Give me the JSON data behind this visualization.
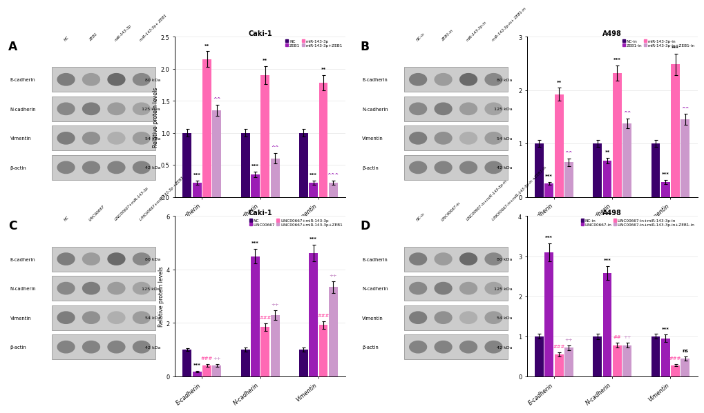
{
  "panels": [
    "A",
    "B",
    "C",
    "D"
  ],
  "panel_titles": [
    "Caki-1",
    "A498",
    "Caki-1",
    "A498"
  ],
  "panel_A": {
    "blot_labels": [
      "NC",
      "ZEB1",
      "miR-143-3p",
      "miR-143-3p+ ZEB1"
    ],
    "blot_rows": [
      "E-cadherin",
      "N-cadherin",
      "Vimentin",
      "β-actin"
    ],
    "blot_kda": [
      "80 kDa",
      "125 kDa",
      "54 kDa",
      "42 kDa"
    ],
    "legend": [
      "NC",
      "ZEB1",
      "miR-143-3p",
      "miR-143-3p+ZEB1"
    ],
    "legend_colors": [
      "#3B006B",
      "#9B1DB5",
      "#FF69B4",
      "#CC99CC"
    ],
    "categories": [
      "E-cadherin",
      "N-cadherin",
      "Vimentin"
    ],
    "values": [
      [
        1.0,
        0.22,
        2.15,
        1.35
      ],
      [
        1.0,
        0.35,
        1.9,
        0.6
      ],
      [
        1.0,
        0.22,
        1.78,
        0.22
      ]
    ],
    "errors": [
      [
        0.06,
        0.03,
        0.12,
        0.09
      ],
      [
        0.06,
        0.04,
        0.14,
        0.08
      ],
      [
        0.06,
        0.03,
        0.12,
        0.03
      ]
    ],
    "ylim": [
      0,
      2.5
    ],
    "yticks": [
      0.0,
      0.5,
      1.0,
      1.5,
      2.0,
      2.5
    ],
    "annotations": [
      {
        "group": 0,
        "bar": 1,
        "text": "***",
        "color": "black"
      },
      {
        "group": 0,
        "bar": 2,
        "text": "**",
        "color": "black"
      },
      {
        "group": 0,
        "bar": 3,
        "text": "^^",
        "color": "#9B1DB5"
      },
      {
        "group": 1,
        "bar": 1,
        "text": "***",
        "color": "black"
      },
      {
        "group": 1,
        "bar": 2,
        "text": "**",
        "color": "black"
      },
      {
        "group": 1,
        "bar": 3,
        "text": "^^",
        "color": "#9B1DB5"
      },
      {
        "group": 2,
        "bar": 1,
        "text": "***",
        "color": "black"
      },
      {
        "group": 2,
        "bar": 2,
        "text": "**",
        "color": "black"
      },
      {
        "group": 2,
        "bar": 3,
        "text": "^^^",
        "color": "#9B1DB5"
      }
    ]
  },
  "panel_B": {
    "blot_labels": [
      "NC-in",
      "ZEB1-in",
      "miR-143-3p-in",
      "miR-143-3p-in+ ZEB1-in"
    ],
    "blot_rows": [
      "E-cadherin",
      "N-cadherin",
      "Vimentin",
      "β-actin"
    ],
    "blot_kda": [
      "80 kDa",
      "125 kDa",
      "54 kDa",
      "42 kDa"
    ],
    "legend": [
      "NC-in",
      "ZEB1-in",
      "miR-143-3p-in",
      "miR-143-3p-in+ZEB1-in"
    ],
    "legend_colors": [
      "#3B006B",
      "#9B1DB5",
      "#FF69B4",
      "#CC99CC"
    ],
    "categories": [
      "E-cadherin",
      "N-cadherin",
      "Vimentin"
    ],
    "values": [
      [
        1.0,
        0.25,
        1.92,
        0.65
      ],
      [
        1.0,
        0.68,
        2.32,
        1.38
      ],
      [
        1.0,
        0.28,
        2.48,
        1.45
      ]
    ],
    "errors": [
      [
        0.06,
        0.03,
        0.12,
        0.07
      ],
      [
        0.06,
        0.05,
        0.14,
        0.09
      ],
      [
        0.06,
        0.04,
        0.2,
        0.1
      ]
    ],
    "ylim": [
      0,
      3.0
    ],
    "yticks": [
      0.0,
      1.0,
      2.0,
      3.0
    ],
    "annotations": [
      {
        "group": 0,
        "bar": 1,
        "text": "***",
        "color": "black"
      },
      {
        "group": 0,
        "bar": 2,
        "text": "**",
        "color": "black"
      },
      {
        "group": 0,
        "bar": 3,
        "text": "^^",
        "color": "#9B1DB5"
      },
      {
        "group": 1,
        "bar": 1,
        "text": "**",
        "color": "black"
      },
      {
        "group": 1,
        "bar": 2,
        "text": "***",
        "color": "black"
      },
      {
        "group": 1,
        "bar": 3,
        "text": "^^",
        "color": "#9B1DB5"
      },
      {
        "group": 2,
        "bar": 1,
        "text": "***",
        "color": "black"
      },
      {
        "group": 2,
        "bar": 2,
        "text": "***",
        "color": "black"
      },
      {
        "group": 2,
        "bar": 3,
        "text": "^^",
        "color": "#9B1DB5"
      }
    ]
  },
  "panel_C": {
    "blot_labels": [
      "NC",
      "LINC00667",
      "LINC00667+miR-143-3p",
      "LINC00667+miR-143-3p +ZEB1"
    ],
    "blot_rows": [
      "E-cadherin",
      "N-cadherin",
      "Vimentin",
      "β-actin"
    ],
    "blot_kda": [
      "80 kDa",
      "125 kDa",
      "54 kDa",
      "42 kDa"
    ],
    "legend": [
      "NC",
      "LINC00667",
      "LINC00667+miR-143-3p",
      "LINC00667+miR-143-3p+ZEB1"
    ],
    "legend_colors": [
      "#3B006B",
      "#9B1DB5",
      "#FF69B4",
      "#CC99CC"
    ],
    "categories": [
      "E-cadherin",
      "N-cadherin",
      "Vimentin"
    ],
    "values": [
      [
        1.0,
        0.18,
        0.42,
        0.42
      ],
      [
        1.0,
        4.5,
        1.85,
        2.3
      ],
      [
        1.0,
        4.62,
        1.92,
        3.35
      ]
    ],
    "errors": [
      [
        0.06,
        0.02,
        0.05,
        0.05
      ],
      [
        0.08,
        0.28,
        0.14,
        0.18
      ],
      [
        0.08,
        0.3,
        0.14,
        0.22
      ]
    ],
    "ylim": [
      0,
      6.0
    ],
    "yticks": [
      0,
      2,
      4,
      6
    ],
    "annotations": [
      {
        "group": 0,
        "bar": 1,
        "text": "***",
        "color": "black"
      },
      {
        "group": 0,
        "bar": 2,
        "text": "###",
        "color": "#FF69B4"
      },
      {
        "group": 0,
        "bar": 3,
        "text": "++",
        "color": "#CC99CC"
      },
      {
        "group": 1,
        "bar": 1,
        "text": "***",
        "color": "black"
      },
      {
        "group": 1,
        "bar": 2,
        "text": "###",
        "color": "#FF69B4"
      },
      {
        "group": 1,
        "bar": 3,
        "text": "++",
        "color": "#CC99CC"
      },
      {
        "group": 2,
        "bar": 1,
        "text": "***",
        "color": "black"
      },
      {
        "group": 2,
        "bar": 2,
        "text": "###",
        "color": "#FF69B4"
      },
      {
        "group": 2,
        "bar": 3,
        "text": "++",
        "color": "#CC99CC"
      }
    ]
  },
  "panel_D": {
    "blot_labels": [
      "NC-in",
      "LINC00667-in",
      "LINC00667-in+miR-143-3p-in",
      "LINC00667-in+miR-143-3p-in +ZEB1-in"
    ],
    "blot_rows": [
      "E-cadherin",
      "N-cadherin",
      "Vimentin",
      "β-actin"
    ],
    "blot_kda": [
      "80 kDa",
      "125 kDa",
      "54 kDa",
      "42 kDa"
    ],
    "legend": [
      "NC-in",
      "LINC00667-in",
      "LINC00667-in+miR-143-3p-in",
      "LINC00667-in+miR-143-3p-in+ZEB1-in"
    ],
    "legend_colors": [
      "#3B006B",
      "#9B1DB5",
      "#FF69B4",
      "#CC99CC"
    ],
    "categories": [
      "E-cadherin",
      "N-cadherin",
      "Vimentin"
    ],
    "values": [
      [
        1.0,
        3.1,
        0.55,
        0.72
      ],
      [
        1.0,
        2.58,
        0.78,
        0.78
      ],
      [
        1.0,
        0.95,
        0.28,
        0.45
      ]
    ],
    "errors": [
      [
        0.06,
        0.22,
        0.05,
        0.06
      ],
      [
        0.07,
        0.17,
        0.06,
        0.06
      ],
      [
        0.06,
        0.09,
        0.03,
        0.05
      ]
    ],
    "ylim": [
      0,
      4.0
    ],
    "yticks": [
      0,
      1,
      2,
      3,
      4
    ],
    "annotations": [
      {
        "group": 0,
        "bar": 1,
        "text": "***",
        "color": "black"
      },
      {
        "group": 0,
        "bar": 2,
        "text": "###",
        "color": "#FF69B4"
      },
      {
        "group": 0,
        "bar": 3,
        "text": "++",
        "color": "#CC99CC"
      },
      {
        "group": 1,
        "bar": 1,
        "text": "***",
        "color": "black"
      },
      {
        "group": 1,
        "bar": 2,
        "text": "##",
        "color": "#FF69B4"
      },
      {
        "group": 1,
        "bar": 3,
        "text": "++",
        "color": "#CC99CC"
      },
      {
        "group": 2,
        "bar": 1,
        "text": "***",
        "color": "black"
      },
      {
        "group": 2,
        "bar": 2,
        "text": "###",
        "color": "#FF69B4"
      },
      {
        "group": 2,
        "bar": 3,
        "text": "ns",
        "color": "black"
      }
    ]
  },
  "bar_colors": [
    "#3B006B",
    "#9B1DB5",
    "#FF69B4",
    "#CC99CC"
  ],
  "ylabel": "Relative protein levels",
  "background_color": "#ffffff",
  "fig_width": 10.2,
  "fig_height": 5.08
}
